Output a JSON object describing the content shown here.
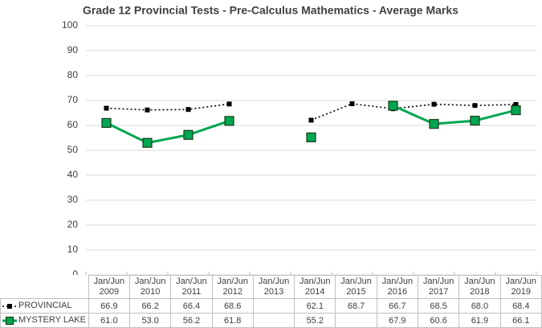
{
  "chart_data": {
    "type": "line",
    "title": "Grade 12 Provincial Tests - Pre-Calculus Mathematics - Average Marks",
    "categories": [
      "Jan/Jun 2009",
      "Jan/Jun 2010",
      "Jan/Jun 2011",
      "Jan/Jun 2012",
      "Jan/Jun 2013",
      "Jan/Jun 2014",
      "Jan/Jun 2015",
      "Jan/Jun 2016",
      "Jan/Jun 2017",
      "Jan/Jun 2018",
      "Jan/Jun 2019"
    ],
    "series": [
      {
        "name": "PROVINCIAL",
        "color": "#000000",
        "dash": "dotted",
        "values": [
          66.9,
          66.2,
          66.4,
          68.6,
          null,
          62.1,
          68.7,
          66.7,
          68.5,
          68.0,
          68.4
        ],
        "value_labels": [
          "66.9",
          "66.2",
          "66.4",
          "68.6",
          null,
          "62.1",
          "68.7",
          "66.7",
          "68.5",
          "68.0",
          "68.4"
        ]
      },
      {
        "name": "MYSTERY LAKE",
        "color": "#00a651",
        "values": [
          61.0,
          53.0,
          56.2,
          61.8,
          null,
          55.2,
          null,
          67.9,
          60.6,
          61.9,
          66.1
        ],
        "value_labels": [
          "61.0",
          "53.0",
          "56.2",
          "61.8",
          null,
          "55.2",
          null,
          "67.9",
          "60.6",
          "61.9",
          "66.1"
        ]
      }
    ],
    "ylim": [
      0,
      100
    ],
    "yticks": [
      0,
      10,
      20,
      30,
      40,
      50,
      60,
      70,
      80,
      90,
      100
    ],
    "grid": true
  }
}
